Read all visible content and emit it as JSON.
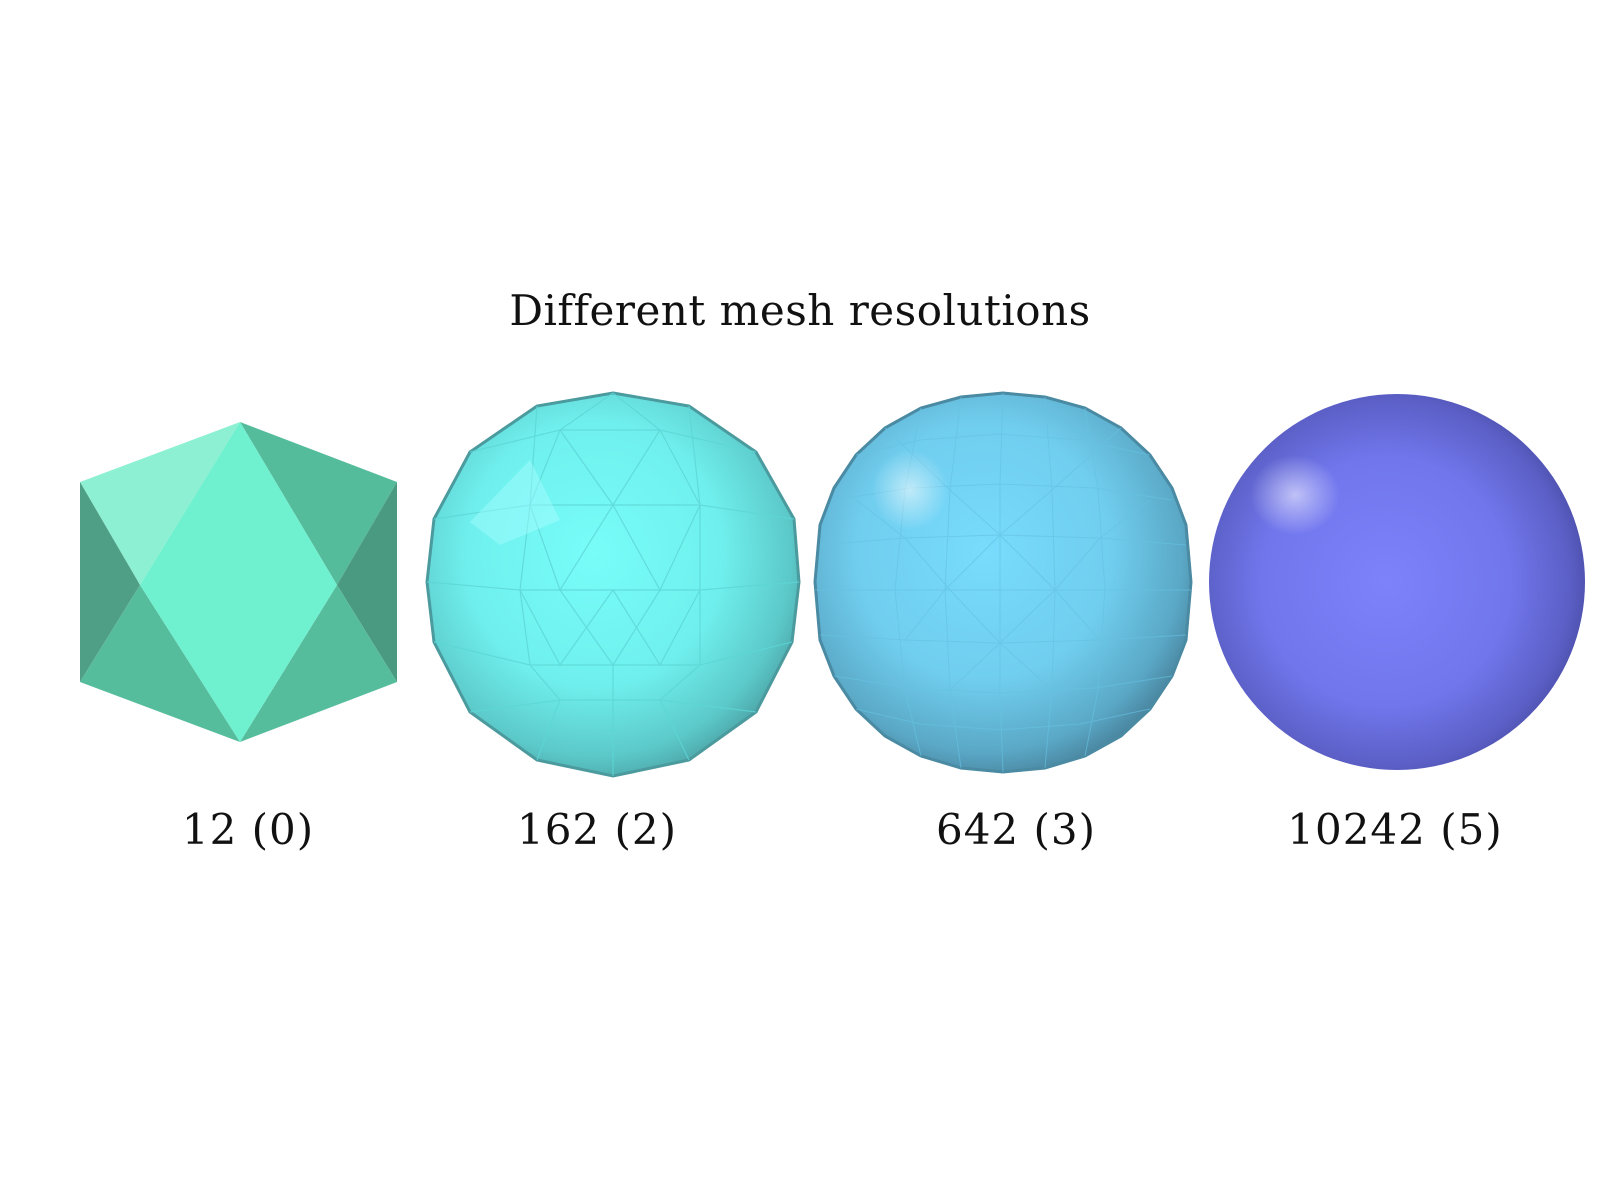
{
  "title": "Different mesh resolutions",
  "meshes": [
    {
      "label": "12 (0)",
      "vertices": 12,
      "subdivisions": 0,
      "color": "#6ff0cf",
      "shape": "icosahedron-icon"
    },
    {
      "label": "162 (2)",
      "vertices": 162,
      "subdivisions": 2,
      "color": "#74fbf6",
      "shape": "faceted-sphere-icon"
    },
    {
      "label": "642 (3)",
      "vertices": 642,
      "subdivisions": 3,
      "color": "#74d8fb",
      "shape": "faceted-sphere-icon"
    },
    {
      "label": "10242 (5)",
      "vertices": 10242,
      "subdivisions": 5,
      "color": "#7b80f8",
      "shape": "smooth-sphere-icon"
    }
  ]
}
